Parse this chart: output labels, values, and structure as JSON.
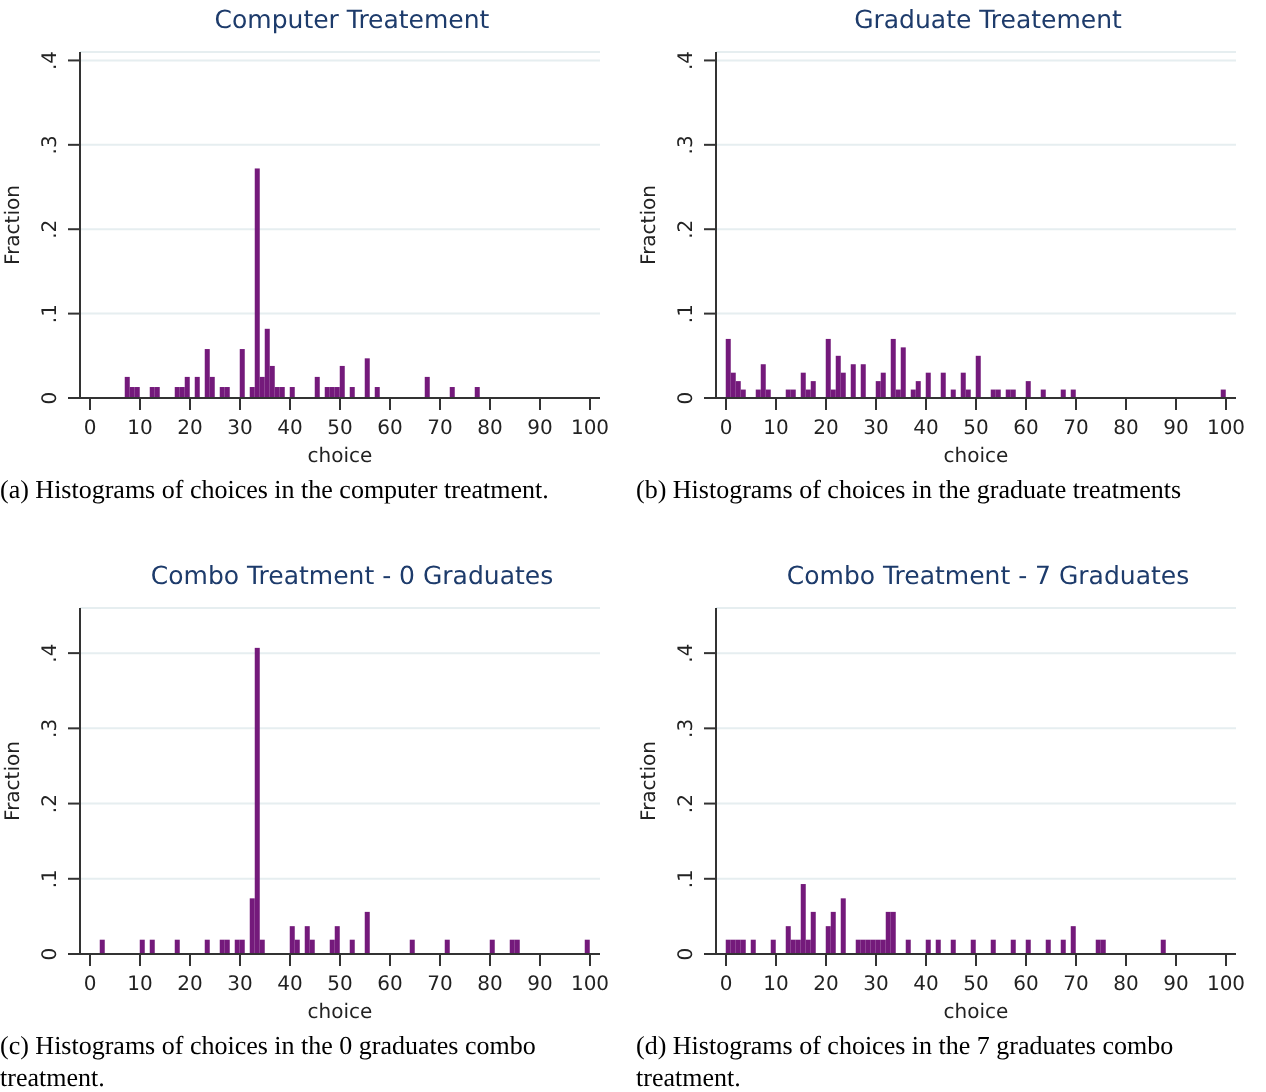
{
  "chart_data": [
    {
      "type": "histogram",
      "title": "Computer Treatement",
      "xlabel": "choice",
      "ylabel": "Fraction",
      "color": "#741a7b",
      "grid": "y",
      "annotations": [
        "(a) Histograms of choices in the computer treatment."
      ],
      "bins": [
        0,
        1,
        2,
        3,
        4,
        5,
        6,
        7,
        8,
        9,
        10,
        11,
        12,
        13,
        14,
        15,
        16,
        17,
        18,
        19,
        20,
        21,
        22,
        23,
        24,
        25,
        26,
        27,
        28,
        29,
        30,
        31,
        32,
        33,
        34,
        35,
        36,
        37,
        38,
        39,
        40,
        41,
        42,
        43,
        44,
        45,
        46,
        47,
        48,
        49,
        50,
        51,
        52,
        53,
        54,
        55,
        56,
        57,
        58,
        59,
        60,
        61,
        62,
        63,
        64,
        65,
        66,
        67,
        68,
        69,
        70,
        71,
        72,
        73,
        74,
        75,
        76,
        77,
        78,
        79,
        80,
        81,
        82,
        83,
        84,
        85,
        86,
        87,
        88,
        89,
        90,
        91,
        92,
        93,
        94,
        95,
        96,
        97,
        98,
        99,
        100,
        101
      ],
      "values": [
        0,
        0,
        0,
        0,
        0,
        0,
        0,
        0.025,
        0.013,
        0.013,
        0,
        0,
        0.013,
        0.013,
        0,
        0,
        0,
        0.013,
        0.013,
        0.025,
        0,
        0.025,
        0,
        0.058,
        0.025,
        0,
        0.013,
        0.013,
        0,
        0,
        0.058,
        0,
        0.013,
        0.272,
        0.025,
        0.082,
        0.038,
        0.013,
        0.013,
        0,
        0.013,
        0,
        0,
        0,
        0,
        0.025,
        0,
        0.013,
        0.013,
        0.013,
        0.038,
        0,
        0.013,
        0,
        0,
        0.047,
        0,
        0.013,
        0,
        0,
        0,
        0,
        0,
        0,
        0,
        0,
        0,
        0.025,
        0,
        0,
        0,
        0,
        0.013,
        0,
        0,
        0,
        0,
        0.013,
        0,
        0,
        0,
        0,
        0,
        0,
        0,
        0,
        0,
        0,
        0,
        0,
        0,
        0,
        0,
        0,
        0,
        0,
        0,
        0,
        0,
        0,
        0
      ],
      "xlim": [
        -2,
        102
      ],
      "xticks": [
        0,
        10,
        20,
        30,
        40,
        50,
        60,
        70,
        80,
        90,
        100
      ],
      "ylim": [
        0,
        0.41
      ],
      "yticks": [
        {
          "value": 0,
          "label": "0"
        },
        {
          "value": 0.1,
          "label": ".1"
        },
        {
          "value": 0.2,
          "label": ".2"
        },
        {
          "value": 0.3,
          "label": ".3"
        },
        {
          "value": 0.4,
          "label": ".4"
        }
      ]
    },
    {
      "type": "histogram",
      "title": "Graduate Treatement",
      "xlabel": "choice",
      "ylabel": "Fraction",
      "color": "#741a7b",
      "grid": "y",
      "annotations": [
        "(b) Histograms of choices in the graduate treatments"
      ],
      "bins": [
        0,
        1,
        2,
        3,
        4,
        5,
        6,
        7,
        8,
        9,
        10,
        11,
        12,
        13,
        14,
        15,
        16,
        17,
        18,
        19,
        20,
        21,
        22,
        23,
        24,
        25,
        26,
        27,
        28,
        29,
        30,
        31,
        32,
        33,
        34,
        35,
        36,
        37,
        38,
        39,
        40,
        41,
        42,
        43,
        44,
        45,
        46,
        47,
        48,
        49,
        50,
        51,
        52,
        53,
        54,
        55,
        56,
        57,
        58,
        59,
        60,
        61,
        62,
        63,
        64,
        65,
        66,
        67,
        68,
        69,
        70,
        71,
        72,
        73,
        74,
        75,
        76,
        77,
        78,
        79,
        80,
        81,
        82,
        83,
        84,
        85,
        86,
        87,
        88,
        89,
        90,
        91,
        92,
        93,
        94,
        95,
        96,
        97,
        98,
        99,
        100,
        101
      ],
      "values": [
        0.07,
        0.03,
        0.02,
        0.01,
        0,
        0,
        0.01,
        0.04,
        0.01,
        0,
        0,
        0,
        0.01,
        0.01,
        0,
        0.03,
        0.01,
        0.02,
        0,
        0,
        0.07,
        0.01,
        0.05,
        0.03,
        0,
        0.04,
        0,
        0.04,
        0,
        0,
        0.02,
        0.03,
        0,
        0.07,
        0.01,
        0.06,
        0,
        0.01,
        0.02,
        0,
        0.03,
        0,
        0,
        0.03,
        0,
        0.01,
        0,
        0.03,
        0.01,
        0,
        0.05,
        0,
        0,
        0.01,
        0.01,
        0,
        0.01,
        0.01,
        0,
        0,
        0.02,
        0,
        0,
        0.01,
        0,
        0,
        0,
        0.01,
        0,
        0.01,
        0,
        0,
        0,
        0,
        0,
        0,
        0,
        0,
        0,
        0,
        0,
        0,
        0,
        0,
        0,
        0,
        0,
        0,
        0,
        0,
        0,
        0,
        0,
        0,
        0,
        0,
        0,
        0,
        0,
        0.01,
        0
      ],
      "xlim": [
        -2,
        102
      ],
      "xticks": [
        0,
        10,
        20,
        30,
        40,
        50,
        60,
        70,
        80,
        90,
        100
      ],
      "ylim": [
        0,
        0.41
      ],
      "yticks": [
        {
          "value": 0,
          "label": "0"
        },
        {
          "value": 0.1,
          "label": ".1"
        },
        {
          "value": 0.2,
          "label": ".2"
        },
        {
          "value": 0.3,
          "label": ".3"
        },
        {
          "value": 0.4,
          "label": ".4"
        }
      ]
    },
    {
      "type": "histogram",
      "title": "Combo Treatment - 0 Graduates",
      "xlabel": "choice",
      "ylabel": "Fraction",
      "color": "#741a7b",
      "grid": "y",
      "annotations": [
        "(c) Histograms of choices in the 0 graduates combo treatment."
      ],
      "bins": [
        0,
        1,
        2,
        3,
        4,
        5,
        6,
        7,
        8,
        9,
        10,
        11,
        12,
        13,
        14,
        15,
        16,
        17,
        18,
        19,
        20,
        21,
        22,
        23,
        24,
        25,
        26,
        27,
        28,
        29,
        30,
        31,
        32,
        33,
        34,
        35,
        36,
        37,
        38,
        39,
        40,
        41,
        42,
        43,
        44,
        45,
        46,
        47,
        48,
        49,
        50,
        51,
        52,
        53,
        54,
        55,
        56,
        57,
        58,
        59,
        60,
        61,
        62,
        63,
        64,
        65,
        66,
        67,
        68,
        69,
        70,
        71,
        72,
        73,
        74,
        75,
        76,
        77,
        78,
        79,
        80,
        81,
        82,
        83,
        84,
        85,
        86,
        87,
        88,
        89,
        90,
        91,
        92,
        93,
        94,
        95,
        96,
        97,
        98,
        99,
        100,
        101
      ],
      "values": [
        0,
        0,
        0.019,
        0,
        0,
        0,
        0,
        0,
        0,
        0,
        0.019,
        0,
        0.019,
        0,
        0,
        0,
        0,
        0.019,
        0,
        0,
        0,
        0,
        0,
        0.019,
        0,
        0,
        0.019,
        0.019,
        0,
        0.019,
        0.019,
        0,
        0.074,
        0.407,
        0.019,
        0,
        0,
        0,
        0,
        0,
        0.037,
        0.019,
        0,
        0.037,
        0.019,
        0,
        0,
        0,
        0.019,
        0.037,
        0,
        0,
        0.019,
        0,
        0,
        0.056,
        0,
        0,
        0,
        0,
        0,
        0,
        0,
        0,
        0.019,
        0,
        0,
        0,
        0,
        0,
        0,
        0.019,
        0,
        0,
        0,
        0,
        0,
        0,
        0,
        0,
        0.019,
        0,
        0,
        0,
        0.019,
        0.019,
        0,
        0,
        0,
        0,
        0,
        0,
        0,
        0,
        0,
        0,
        0,
        0,
        0,
        0.019,
        0
      ],
      "xlim": [
        -2,
        102
      ],
      "xticks": [
        0,
        10,
        20,
        30,
        40,
        50,
        60,
        70,
        80,
        90,
        100
      ],
      "ylim": [
        0,
        0.46
      ],
      "yticks": [
        {
          "value": 0,
          "label": "0"
        },
        {
          "value": 0.1,
          "label": ".1"
        },
        {
          "value": 0.2,
          "label": ".2"
        },
        {
          "value": 0.3,
          "label": ".3"
        },
        {
          "value": 0.4,
          "label": ".4"
        }
      ]
    },
    {
      "type": "histogram",
      "title": "Combo Treatment - 7 Graduates",
      "xlabel": "choice",
      "ylabel": "Fraction",
      "color": "#741a7b",
      "grid": "y",
      "annotations": [
        "(d) Histograms of choices in the 7 graduates combo treatment."
      ],
      "bins": [
        0,
        1,
        2,
        3,
        4,
        5,
        6,
        7,
        8,
        9,
        10,
        11,
        12,
        13,
        14,
        15,
        16,
        17,
        18,
        19,
        20,
        21,
        22,
        23,
        24,
        25,
        26,
        27,
        28,
        29,
        30,
        31,
        32,
        33,
        34,
        35,
        36,
        37,
        38,
        39,
        40,
        41,
        42,
        43,
        44,
        45,
        46,
        47,
        48,
        49,
        50,
        51,
        52,
        53,
        54,
        55,
        56,
        57,
        58,
        59,
        60,
        61,
        62,
        63,
        64,
        65,
        66,
        67,
        68,
        69,
        70,
        71,
        72,
        73,
        74,
        75,
        76,
        77,
        78,
        79,
        80,
        81,
        82,
        83,
        84,
        85,
        86,
        87,
        88,
        89,
        90,
        91,
        92,
        93,
        94,
        95,
        96,
        97,
        98,
        99,
        100,
        101
      ],
      "values": [
        0.019,
        0.019,
        0.019,
        0.019,
        0,
        0.019,
        0,
        0,
        0,
        0.019,
        0,
        0,
        0.037,
        0.019,
        0.019,
        0.093,
        0.019,
        0.056,
        0,
        0,
        0.037,
        0.056,
        0,
        0.074,
        0,
        0,
        0.019,
        0.019,
        0.019,
        0.019,
        0.019,
        0.019,
        0.056,
        0.056,
        0,
        0,
        0.019,
        0,
        0,
        0,
        0.019,
        0,
        0.019,
        0,
        0,
        0.019,
        0,
        0,
        0,
        0.019,
        0,
        0,
        0,
        0.019,
        0,
        0,
        0,
        0.019,
        0,
        0,
        0.019,
        0,
        0,
        0,
        0.019,
        0,
        0,
        0.019,
        0,
        0.037,
        0,
        0,
        0,
        0,
        0.019,
        0.019,
        0,
        0,
        0,
        0,
        0,
        0,
        0,
        0,
        0,
        0,
        0,
        0.019,
        0,
        0,
        0,
        0,
        0,
        0,
        0,
        0,
        0,
        0,
        0,
        0,
        0
      ],
      "xlim": [
        -2,
        102
      ],
      "xticks": [
        0,
        10,
        20,
        30,
        40,
        50,
        60,
        70,
        80,
        90,
        100
      ],
      "ylim": [
        0,
        0.46
      ],
      "yticks": [
        {
          "value": 0,
          "label": "0"
        },
        {
          "value": 0.1,
          "label": ".1"
        },
        {
          "value": 0.2,
          "label": ".2"
        },
        {
          "value": 0.3,
          "label": ".3"
        },
        {
          "value": 0.4,
          "label": ".4"
        }
      ]
    }
  ]
}
